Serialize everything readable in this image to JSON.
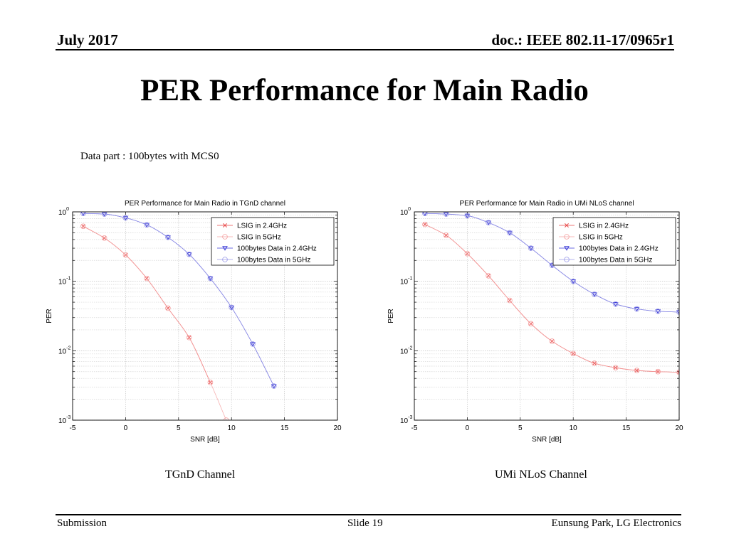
{
  "header": {
    "date": "July 2017",
    "doc": "doc.: IEEE 802.11-17/0965r1"
  },
  "title": "PER Performance for Main Radio",
  "note": "Data part : 100bytes with MCS0",
  "footer": {
    "left": "Submission",
    "center": "Slide 19",
    "right": "Eunsung Park, LG Electronics"
  },
  "captions": [
    "TGnD Channel",
    "UMi NLoS Channel"
  ],
  "colors": {
    "red": "#e84848",
    "blue": "#3a3ad6",
    "red_light": "#f4a0a0",
    "blue_light": "#9a9ae8"
  },
  "chart_data": [
    {
      "type": "line",
      "title": "PER Performance for Main Radio in TGnD channel",
      "xlabel": "SNR [dB]",
      "ylabel": "PER",
      "xlim": [
        -5,
        20
      ],
      "ylim": [
        0.001,
        1
      ],
      "yscale": "log",
      "grid": true,
      "legend_position": "top-right",
      "xticks": [
        "-5",
        "0",
        "5",
        "10",
        "15",
        "20"
      ],
      "yticks": [
        {
          "base": "10",
          "exp": "-3"
        },
        {
          "base": "10",
          "exp": "-2"
        },
        {
          "base": "10",
          "exp": "-1"
        },
        {
          "base": "10",
          "exp": "0"
        }
      ],
      "series": [
        {
          "name": "LSIG in 2.4GHz",
          "color": "#e84848",
          "marker": "x",
          "x": [
            -4,
            -2,
            0,
            2,
            4,
            6,
            8
          ],
          "y": [
            0.62,
            0.42,
            0.24,
            0.11,
            0.041,
            0.0155,
            0.0035
          ]
        },
        {
          "name": "LSIG in 5GHz",
          "color": "#f4a0a0",
          "marker": "circle",
          "x": [
            -4,
            -2,
            0,
            2,
            4,
            6,
            8,
            9.5
          ],
          "y": [
            0.62,
            0.42,
            0.24,
            0.11,
            0.041,
            0.0155,
            0.0035,
            0.001
          ]
        },
        {
          "name": "100bytes Data in 2.4GHz",
          "color": "#3a3ad6",
          "marker": "triangle",
          "x": [
            -4,
            -2,
            0,
            2,
            4,
            6,
            8,
            10,
            12,
            14
          ],
          "y": [
            0.95,
            0.93,
            0.82,
            0.65,
            0.43,
            0.245,
            0.11,
            0.042,
            0.0125,
            0.0031
          ]
        },
        {
          "name": "100bytes Data in 5GHz",
          "color": "#9a9ae8",
          "marker": "circle",
          "x": [
            -4,
            -2,
            0,
            2,
            4,
            6,
            8,
            10,
            12,
            14
          ],
          "y": [
            0.95,
            0.93,
            0.82,
            0.65,
            0.43,
            0.245,
            0.11,
            0.042,
            0.0125,
            0.0031
          ]
        }
      ]
    },
    {
      "type": "line",
      "title": "PER Performance for Main Radio in UMi NLoS channel",
      "xlabel": "SNR [dB]",
      "ylabel": "PER",
      "xlim": [
        -5,
        20
      ],
      "ylim": [
        0.001,
        1
      ],
      "yscale": "log",
      "grid": true,
      "legend_position": "top-right",
      "xticks": [
        "-5",
        "0",
        "5",
        "10",
        "15",
        "20"
      ],
      "yticks": [
        {
          "base": "10",
          "exp": "-3"
        },
        {
          "base": "10",
          "exp": "-2"
        },
        {
          "base": "10",
          "exp": "-1"
        },
        {
          "base": "10",
          "exp": "0"
        }
      ],
      "series": [
        {
          "name": "LSIG in 2.4GHz",
          "color": "#e84848",
          "marker": "x",
          "x": [
            -4,
            -2,
            0,
            2,
            4,
            6,
            8,
            10,
            12,
            14,
            16,
            18,
            20
          ],
          "y": [
            0.66,
            0.46,
            0.25,
            0.12,
            0.053,
            0.0245,
            0.0137,
            0.0091,
            0.0066,
            0.0057,
            0.0052,
            0.005,
            0.0049
          ]
        },
        {
          "name": "LSIG in 5GHz",
          "color": "#f4a0a0",
          "marker": "circle",
          "x": [
            -4,
            -2,
            0,
            2,
            4,
            6,
            8,
            10,
            12,
            14,
            16,
            18,
            20
          ],
          "y": [
            0.66,
            0.46,
            0.25,
            0.12,
            0.053,
            0.0245,
            0.0137,
            0.0091,
            0.0066,
            0.0057,
            0.0052,
            0.005,
            0.0049
          ]
        },
        {
          "name": "100bytes Data in 2.4GHz",
          "color": "#3a3ad6",
          "marker": "triangle",
          "x": [
            -4,
            -2,
            0,
            2,
            4,
            6,
            8,
            10,
            12,
            14,
            16,
            18,
            20
          ],
          "y": [
            0.95,
            0.93,
            0.88,
            0.7,
            0.5,
            0.3,
            0.17,
            0.1,
            0.065,
            0.047,
            0.04,
            0.037,
            0.036
          ]
        },
        {
          "name": "100bytes Data in 5GHz",
          "color": "#9a9ae8",
          "marker": "circle",
          "x": [
            -4,
            -2,
            0,
            2,
            4,
            6,
            8,
            10,
            12,
            14,
            16,
            18,
            20
          ],
          "y": [
            0.95,
            0.93,
            0.88,
            0.7,
            0.5,
            0.3,
            0.17,
            0.1,
            0.065,
            0.047,
            0.04,
            0.037,
            0.036
          ]
        }
      ]
    }
  ]
}
